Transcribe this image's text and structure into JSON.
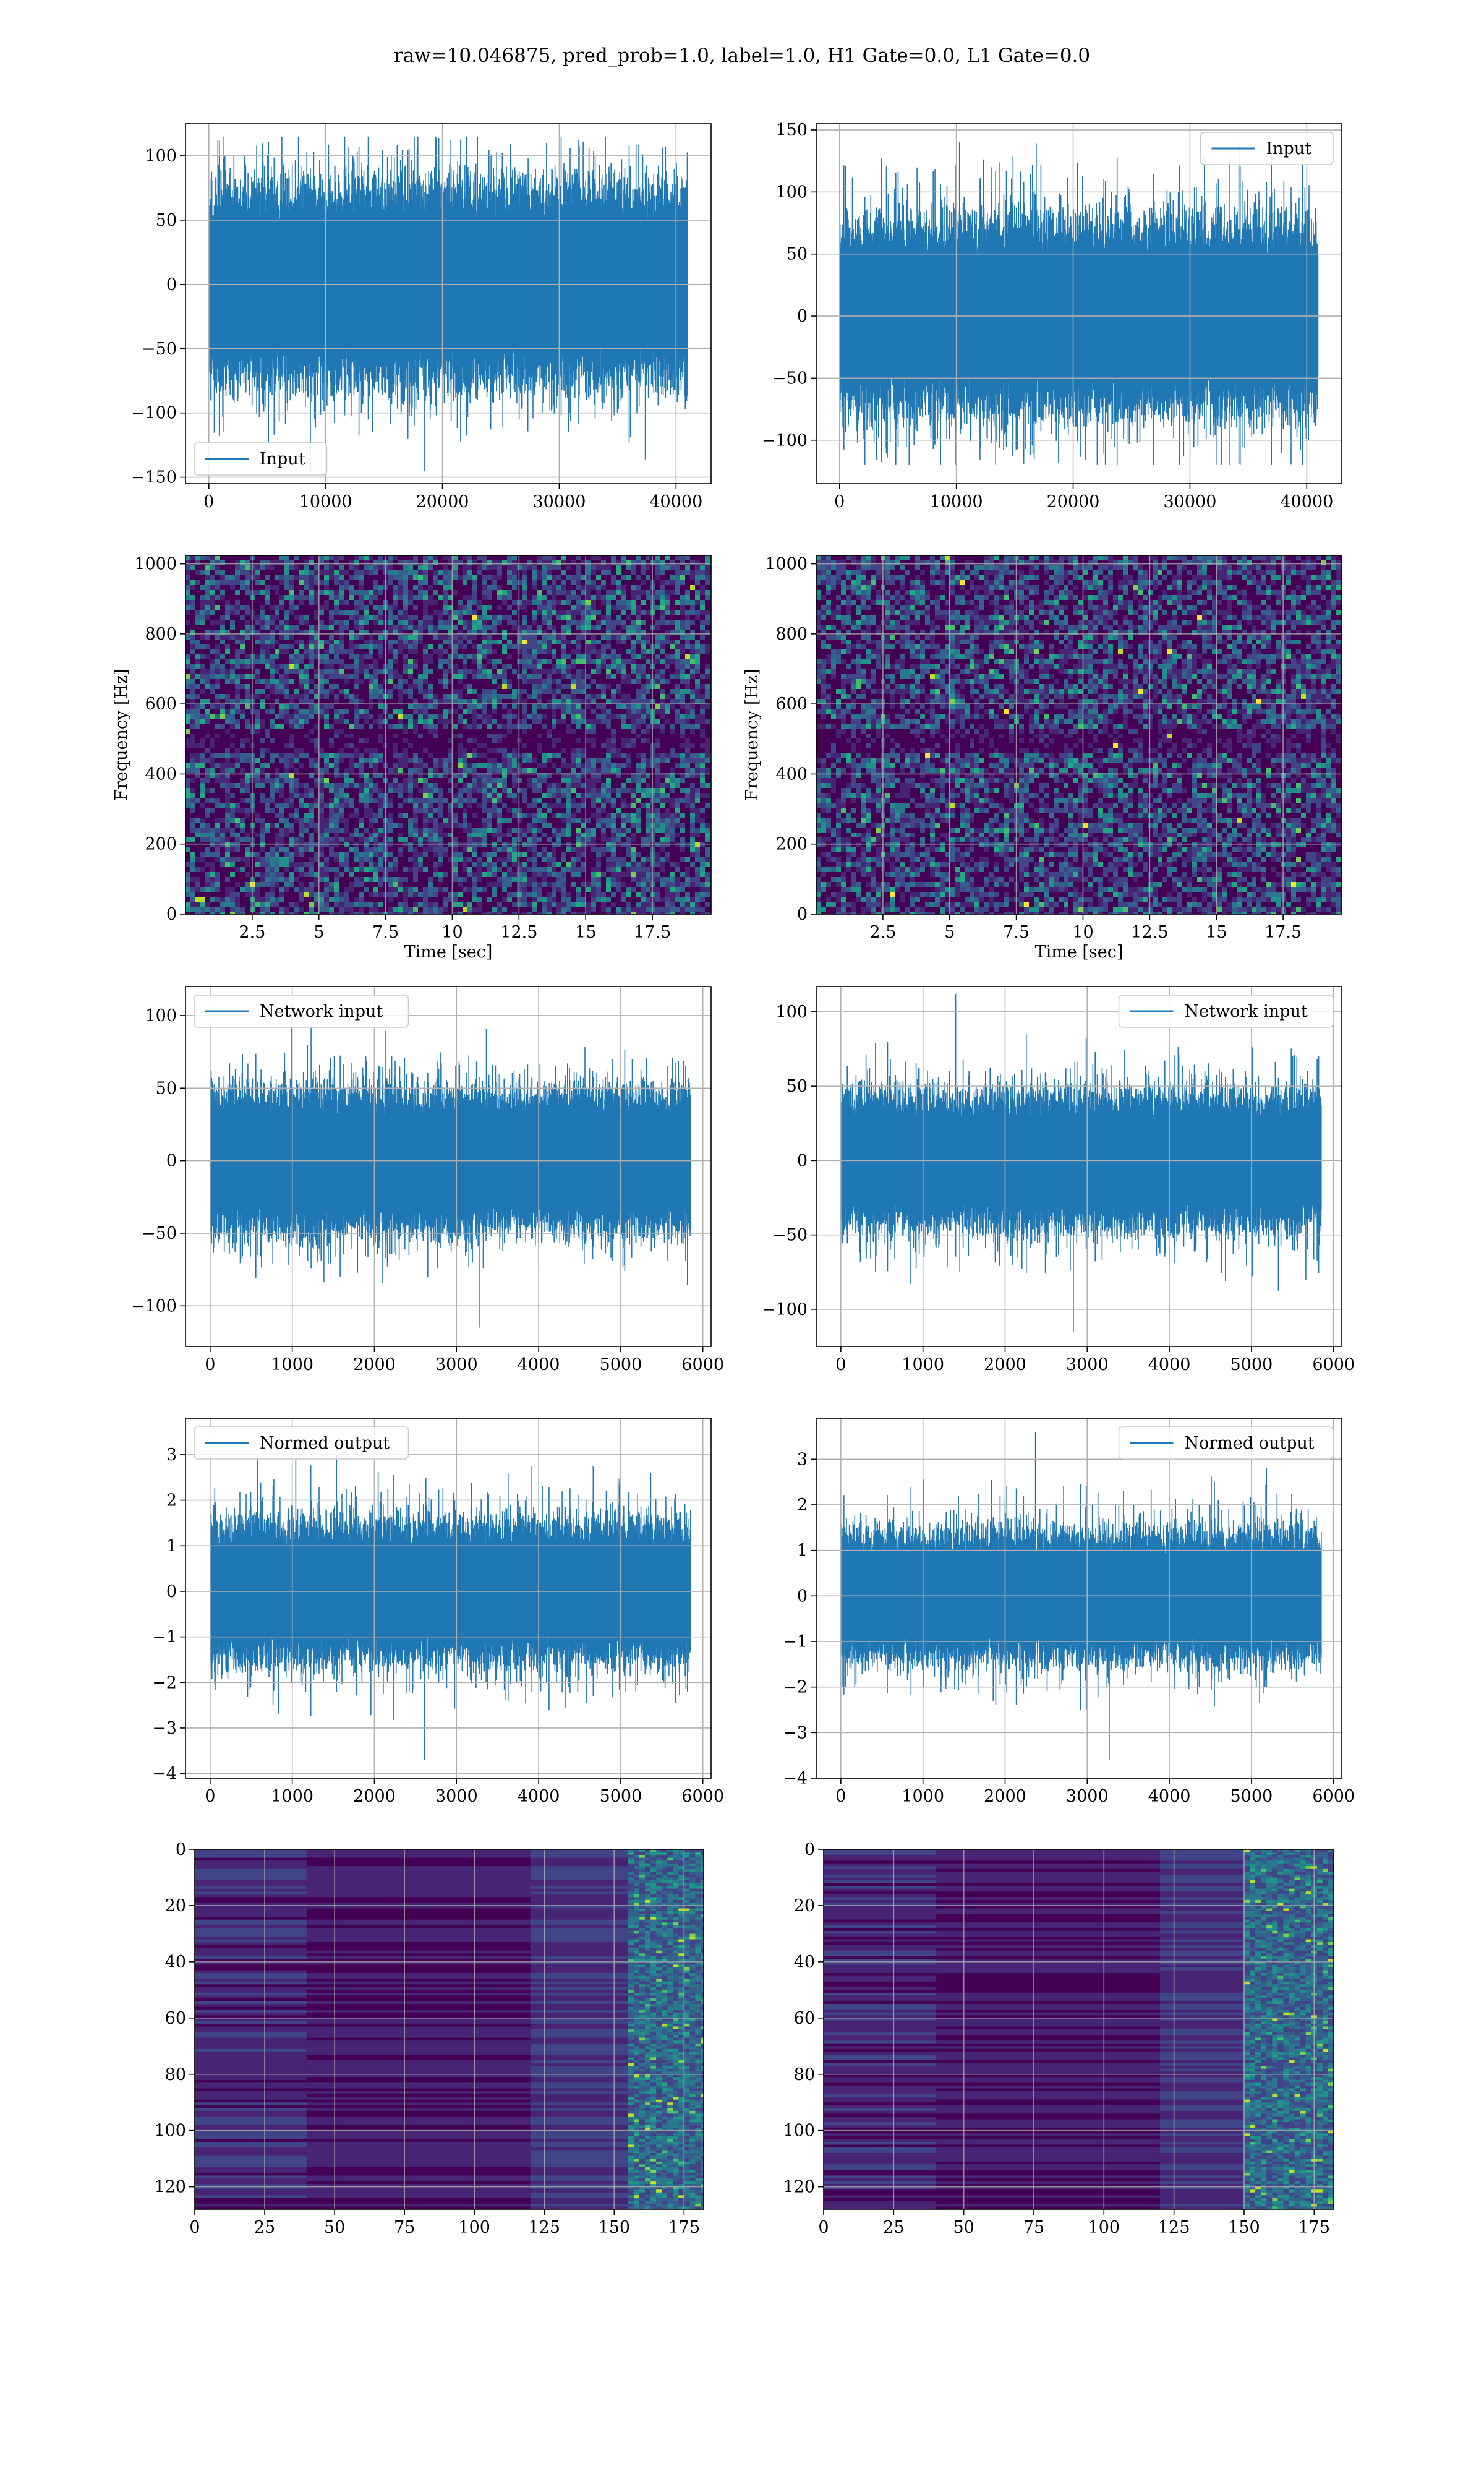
{
  "title": "raw=10.046875, pred_prob=1.0, label=1.0, H1 Gate=0.0, L1 Gate=0.0",
  "colors": {
    "line": "#1f77b4",
    "grid": "#b0b0b0",
    "viridis_low": "#440154",
    "viridis_high": "#fde725"
  },
  "chart_data": [
    {
      "type": "line",
      "row": 1,
      "col": 1,
      "series": [
        {
          "name": "Input",
          "length": 40960,
          "amp_min": -145,
          "amp_max": 115,
          "band": 60
        }
      ],
      "legend": {
        "loc": "lower-left"
      },
      "xlim": [
        -2000,
        43000
      ],
      "ylim": [
        -155,
        125
      ],
      "xticks": [
        0,
        10000,
        20000,
        30000,
        40000
      ],
      "yticks": [
        -150,
        -100,
        -50,
        0,
        50,
        100
      ],
      "xlabel": "",
      "ylabel": "",
      "grid": true
    },
    {
      "type": "line",
      "row": 1,
      "col": 2,
      "series": [
        {
          "name": "Input",
          "length": 40960,
          "amp_min": -120,
          "amp_max": 140,
          "band": 60
        }
      ],
      "legend": {
        "loc": "upper-right"
      },
      "xlim": [
        -2000,
        43000
      ],
      "ylim": [
        -135,
        155
      ],
      "xticks": [
        0,
        10000,
        20000,
        30000,
        40000
      ],
      "yticks": [
        -100,
        -50,
        0,
        50,
        100,
        150
      ],
      "xlabel": "",
      "ylabel": "",
      "grid": true
    },
    {
      "type": "heatmap",
      "row": 2,
      "col": 1,
      "xlim": [
        0,
        19.7
      ],
      "ylim": [
        0,
        1024
      ],
      "xticks": [
        2.5,
        5.0,
        7.5,
        10.0,
        12.5,
        15.0,
        17.5
      ],
      "yticks": [
        0,
        200,
        400,
        600,
        800,
        1000
      ],
      "xlabel": "Time [sec]",
      "ylabel": "Frequency [Hz]",
      "grid": true,
      "colormap": "viridis",
      "texture": "noise"
    },
    {
      "type": "heatmap",
      "row": 2,
      "col": 2,
      "xlim": [
        0,
        19.7
      ],
      "ylim": [
        0,
        1024
      ],
      "xticks": [
        2.5,
        5.0,
        7.5,
        10.0,
        12.5,
        15.0,
        17.5
      ],
      "yticks": [
        0,
        200,
        400,
        600,
        800,
        1000
      ],
      "xlabel": "Time [sec]",
      "ylabel": "Frequency [Hz]",
      "grid": true,
      "colormap": "viridis",
      "texture": "noise"
    },
    {
      "type": "line",
      "row": 3,
      "col": 1,
      "series": [
        {
          "name": "Network input",
          "length": 5850,
          "amp_min": -115,
          "amp_max": 108,
          "band": 38
        }
      ],
      "legend": {
        "loc": "upper-left"
      },
      "xlim": [
        -300,
        6100
      ],
      "ylim": [
        -128,
        120
      ],
      "xticks": [
        0,
        1000,
        2000,
        3000,
        4000,
        5000,
        6000
      ],
      "yticks": [
        -100,
        -50,
        0,
        50,
        100
      ],
      "xlabel": "",
      "ylabel": "",
      "grid": true
    },
    {
      "type": "line",
      "row": 3,
      "col": 2,
      "series": [
        {
          "name": "Network input",
          "length": 5850,
          "amp_min": -115,
          "amp_max": 112,
          "band": 35
        }
      ],
      "legend": {
        "loc": "upper-right"
      },
      "xlim": [
        -300,
        6100
      ],
      "ylim": [
        -125,
        117
      ],
      "xticks": [
        0,
        1000,
        2000,
        3000,
        4000,
        5000,
        6000
      ],
      "yticks": [
        -100,
        -50,
        0,
        50,
        100
      ],
      "xlabel": "",
      "ylabel": "",
      "grid": true
    },
    {
      "type": "line",
      "row": 4,
      "col": 1,
      "series": [
        {
          "name": "Normed output",
          "length": 5850,
          "amp_min": -3.7,
          "amp_max": 3.4,
          "band": 1.2
        }
      ],
      "legend": {
        "loc": "upper-left"
      },
      "xlim": [
        -300,
        6100
      ],
      "ylim": [
        -4.1,
        3.8
      ],
      "xticks": [
        0,
        1000,
        2000,
        3000,
        4000,
        5000,
        6000
      ],
      "yticks": [
        -4,
        -3,
        -2,
        -1,
        0,
        1,
        2,
        3
      ],
      "xlabel": "",
      "ylabel": "",
      "grid": true
    },
    {
      "type": "line",
      "row": 4,
      "col": 2,
      "series": [
        {
          "name": "Normed output",
          "length": 5850,
          "amp_min": -3.6,
          "amp_max": 3.6,
          "band": 1.1
        }
      ],
      "legend": {
        "loc": "upper-right"
      },
      "xlim": [
        -300,
        6100
      ],
      "ylim": [
        -4.0,
        3.9
      ],
      "xticks": [
        0,
        1000,
        2000,
        3000,
        4000,
        5000,
        6000
      ],
      "yticks": [
        -4,
        -3,
        -2,
        -1,
        0,
        1,
        2,
        3
      ],
      "xlabel": "",
      "ylabel": "",
      "grid": true
    },
    {
      "type": "heatmap",
      "row": 5,
      "col": 1,
      "xlim": [
        0,
        182
      ],
      "ylim": [
        128,
        0
      ],
      "xticks": [
        0,
        25,
        50,
        75,
        100,
        125,
        150,
        175
      ],
      "yticks": [
        0,
        20,
        40,
        60,
        80,
        100,
        120
      ],
      "xlabel": "",
      "ylabel": "",
      "grid": true,
      "colormap": "viridis",
      "texture": "rows",
      "hot_region": [
        155,
        182
      ]
    },
    {
      "type": "heatmap",
      "row": 5,
      "col": 2,
      "xlim": [
        0,
        182
      ],
      "ylim": [
        128,
        0
      ],
      "xticks": [
        0,
        25,
        50,
        75,
        100,
        125,
        150,
        175
      ],
      "yticks": [
        0,
        20,
        40,
        60,
        80,
        100,
        120
      ],
      "xlabel": "",
      "ylabel": "",
      "grid": true,
      "colormap": "viridis",
      "texture": "rows",
      "hot_region": [
        150,
        182
      ]
    }
  ]
}
